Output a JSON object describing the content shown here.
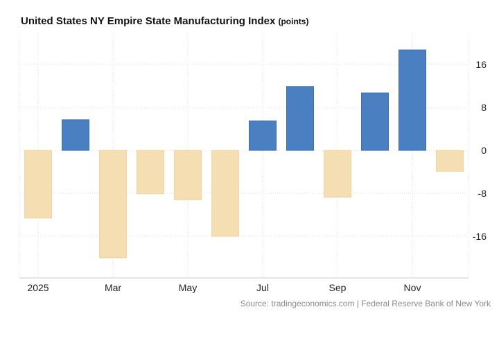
{
  "chart_data": {
    "type": "bar",
    "title": "United States NY Empire State Manufacturing Index",
    "unit": "(points)",
    "categories": [
      "Jan 2025",
      "Feb 2025",
      "Mar 2025",
      "Apr 2025",
      "May 2025",
      "Jun 2025",
      "Jul 2025",
      "Aug 2025",
      "Sep 2025",
      "Oct 2025",
      "Nov 2025",
      "Dec 2025"
    ],
    "values": [
      -12.6,
      5.7,
      -20.0,
      -8.1,
      -9.2,
      -16.0,
      5.5,
      11.9,
      -8.7,
      10.7,
      18.7,
      -3.9
    ],
    "x_tick_labels": [
      {
        "label": "2025",
        "index": 0
      },
      {
        "label": "Mar",
        "index": 2
      },
      {
        "label": "May",
        "index": 4
      },
      {
        "label": "Jul",
        "index": 6
      },
      {
        "label": "Sep",
        "index": 8
      },
      {
        "label": "Nov",
        "index": 10
      }
    ],
    "y_ticks": [
      16,
      8,
      0,
      -8,
      -16
    ],
    "ylim": [
      -24,
      22
    ],
    "xlabel": "",
    "ylabel": "",
    "positive_color": "#4a80c2",
    "negative_color": "#f5deb1",
    "grid": true,
    "source": "Source: tradingeconomics.com | Federal Reserve Bank of New York"
  }
}
